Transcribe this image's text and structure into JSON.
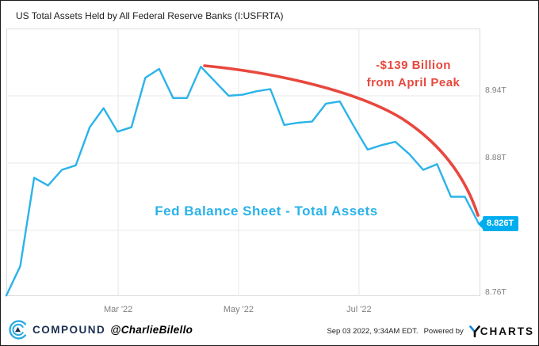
{
  "title": "US Total Assets Held by All Federal Reserve Banks (I:USFRTA)",
  "colors": {
    "line_blue": "#2bb3ea",
    "badge_cyan": "#00aeef",
    "annotation_red": "#e8483d",
    "series_label_cyan": "#29b2e8",
    "gridline": "#e8e8e8",
    "axis_text": "#808080",
    "brand_navy": "#1c2f52",
    "logo_blue": "#29abe2",
    "ycharts_blue": "#1385e0"
  },
  "chart_data": {
    "type": "line",
    "title": "US Total Assets Held by All Federal Reserve Banks (I:USFRTA)",
    "unit": "trillions USD",
    "series": [
      {
        "name": "US Total Assets Held by All Federal Reserve Banks",
        "x": [
          "2022-01-05",
          "2022-01-12",
          "2022-01-19",
          "2022-01-26",
          "2022-02-02",
          "2022-02-09",
          "2022-02-16",
          "2022-02-23",
          "2022-03-02",
          "2022-03-09",
          "2022-03-16",
          "2022-03-23",
          "2022-03-30",
          "2022-04-06",
          "2022-04-13",
          "2022-04-20",
          "2022-04-27",
          "2022-05-04",
          "2022-05-11",
          "2022-05-18",
          "2022-05-25",
          "2022-06-01",
          "2022-06-08",
          "2022-06-15",
          "2022-06-22",
          "2022-06-29",
          "2022-07-06",
          "2022-07-13",
          "2022-07-20",
          "2022-07-27",
          "2022-08-03",
          "2022-08-10",
          "2022-08-17",
          "2022-08-24",
          "2022-08-31"
        ],
        "values": [
          8.762,
          8.788,
          8.867,
          8.86,
          8.874,
          8.878,
          8.912,
          8.929,
          8.908,
          8.912,
          8.956,
          8.964,
          8.938,
          8.938,
          8.966,
          8.953,
          8.94,
          8.941,
          8.944,
          8.946,
          8.914,
          8.916,
          8.917,
          8.933,
          8.935,
          8.913,
          8.892,
          8.896,
          8.899,
          8.888,
          8.874,
          8.879,
          8.85,
          8.85,
          8.826
        ]
      }
    ],
    "x_ticks": [
      {
        "label": "Mar '22",
        "week_index": 8.05
      },
      {
        "label": "May '22",
        "week_index": 16.71
      },
      {
        "label": "Jul '22",
        "week_index": 25.38
      }
    ],
    "y_ticks": [
      {
        "label": "8.94T",
        "value": 8.94
      },
      {
        "label": "8.88T",
        "value": 8.88
      },
      {
        "label": "8.76T",
        "value": 8.76
      }
    ],
    "extra_gridline_values": [
      8.82
    ],
    "ylim": [
      8.757,
      9.001
    ],
    "grid": true,
    "legend_position": "none",
    "last_value": {
      "label": "8.826T",
      "value": 8.826
    },
    "annotations": {
      "decline_note_line1": "-$139 Billion",
      "decline_note_line2": "from April Peak",
      "series_label": "Fed Balance Sheet - Total Assets",
      "peak_value": 8.966,
      "decline_from_peak_billions": 139
    }
  },
  "footer": {
    "brand": "COMPOUND",
    "handle": "@CharlieBilello",
    "timestamp": "Sep 03 2022, 9:34AM EDT.",
    "powered_by": "Powered by",
    "ycharts_wordmark": "CHARTS"
  }
}
